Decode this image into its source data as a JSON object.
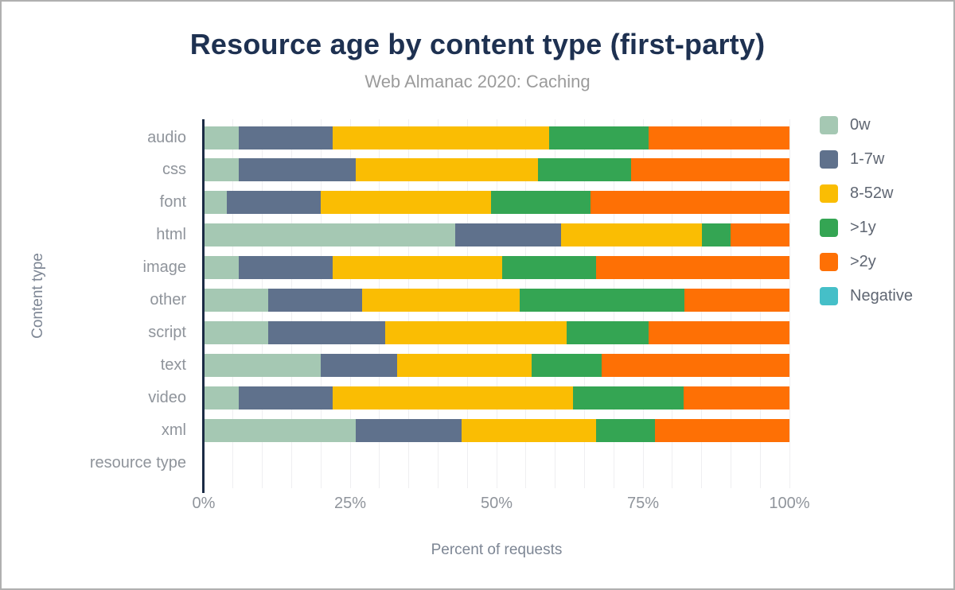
{
  "header": {
    "title": "Resource age by content type (first-party)",
    "subtitle": "Web Almanac 2020: Caching"
  },
  "chart_data": {
    "type": "bar",
    "stacked": true,
    "orientation": "horizontal",
    "title": "Resource age by content type (first-party)",
    "subtitle": "Web Almanac 2020: Caching",
    "xlabel": "Percent of requests",
    "ylabel": "Content type",
    "xlim": [
      0,
      100
    ],
    "x_tick_values": [
      0,
      25,
      50,
      75,
      100
    ],
    "x_tick_labels": [
      "0%",
      "25%",
      "50%",
      "75%",
      "100%"
    ],
    "grid": true,
    "grid_step_percent": 5,
    "legend_position": "right",
    "categories": [
      "audio",
      "css",
      "font",
      "html",
      "image",
      "other",
      "script",
      "text",
      "video",
      "xml",
      "resource type"
    ],
    "series": [
      {
        "name": "0w",
        "color": "#a5c8b3",
        "values": [
          6,
          6,
          4,
          43,
          6,
          11,
          11,
          20,
          6,
          26,
          0
        ]
      },
      {
        "name": "1-7w",
        "color": "#5f718c",
        "values": [
          16,
          20,
          16,
          18,
          16,
          16,
          20,
          13,
          16,
          18,
          0
        ]
      },
      {
        "name": "8-52w",
        "color": "#fabd03",
        "values": [
          37,
          31,
          29,
          24,
          29,
          27,
          31,
          23,
          41,
          23,
          0
        ]
      },
      {
        "name": ">1y",
        "color": "#34a553",
        "values": [
          17,
          16,
          17,
          5,
          16,
          28,
          14,
          12,
          19,
          10,
          0
        ]
      },
      {
        "name": ">2y",
        "color": "#fe7005",
        "values": [
          24,
          27,
          34,
          10,
          33,
          18,
          24,
          32,
          18,
          23,
          0
        ]
      },
      {
        "name": "Negative",
        "color": "#45bfc8",
        "values": [
          0,
          0,
          0,
          0,
          0,
          0,
          0,
          0,
          0,
          0,
          0
        ]
      }
    ]
  },
  "colors": {
    "title": "#1e3151",
    "subtitle": "#9b9b9b",
    "axis_line": "#1b2b45",
    "tick_label": "#8f949b",
    "axis_title": "#7d8694",
    "legend_text": "#5f6672",
    "gridline": "#efeff1",
    "background": "#ffffff",
    "border": "#b0b0b0"
  }
}
